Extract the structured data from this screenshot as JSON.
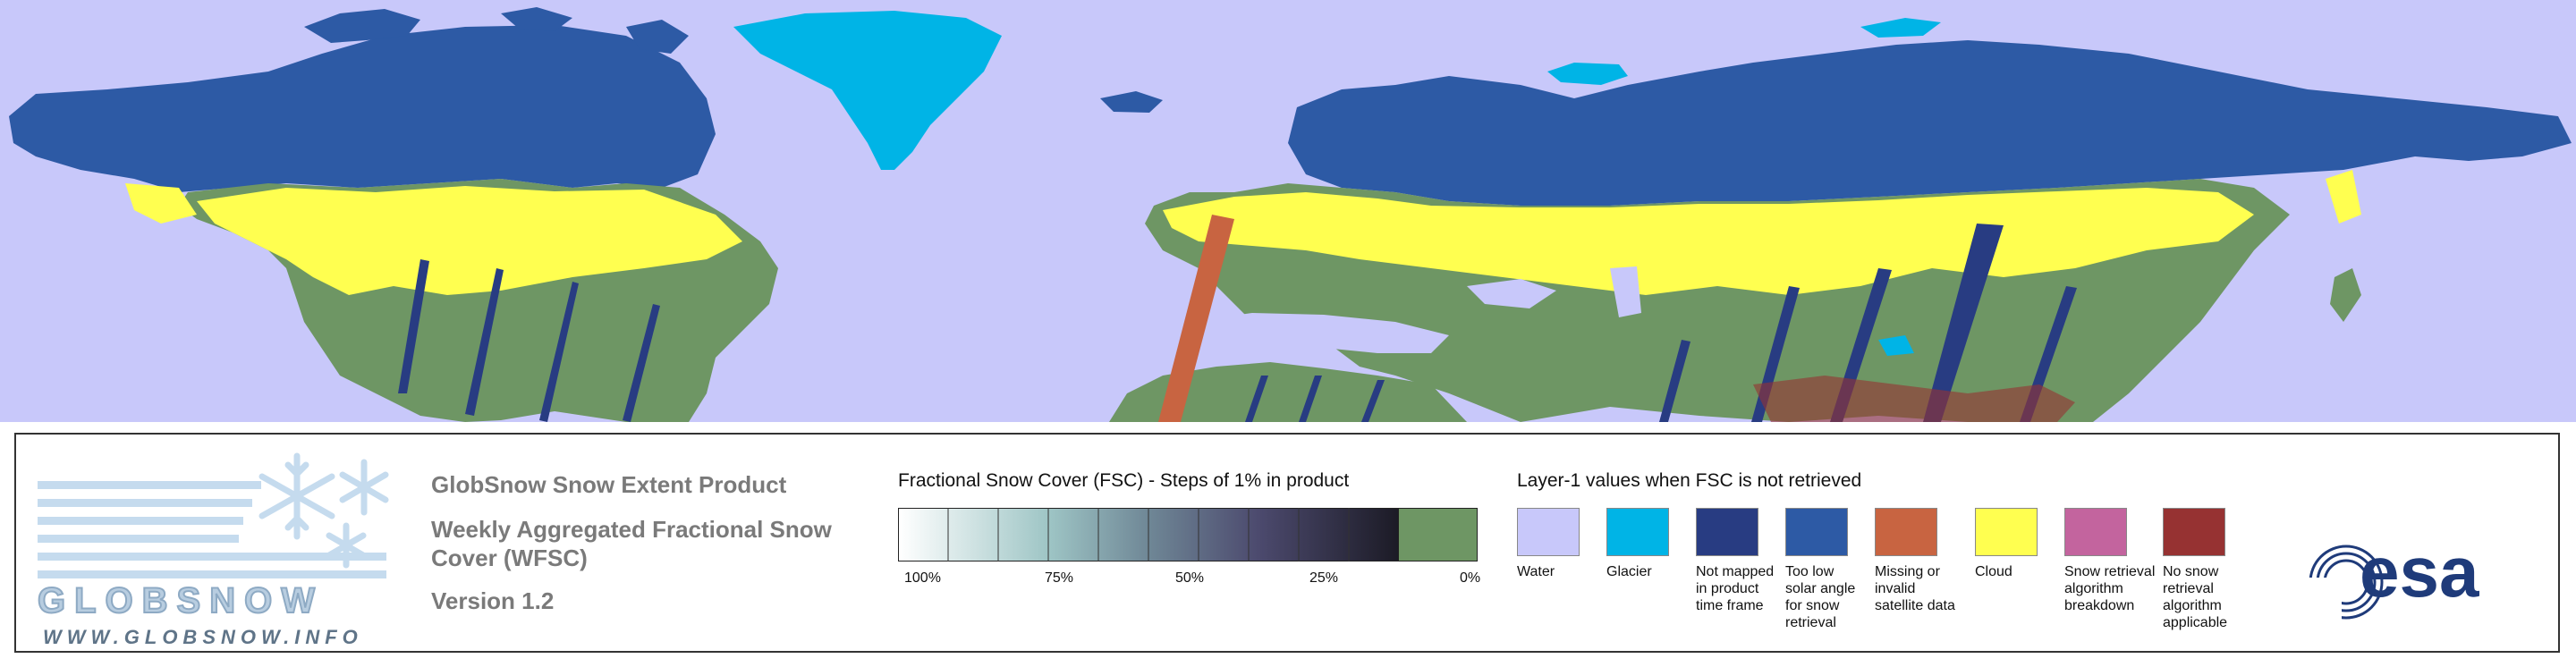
{
  "map": {
    "colors": {
      "water": "#c8c8fa",
      "glacier": "#00b4e6",
      "not_mapped": "#283c82",
      "low_sun": "#2d5aa5",
      "missing": "#c86441",
      "cloud": "#ffff50",
      "snow_free": "#6e9664",
      "algorithm_breakdown": "#c3649e",
      "not_applicable": "#963232"
    }
  },
  "logo": {
    "word": "GLOBSNOW",
    "url": "WWW.GLOBSNOW.INFO"
  },
  "product": {
    "title": "GlobSnow Snow Extent Product",
    "subtitle_line1": "Weekly Aggregated Fractional Snow",
    "subtitle_line2": "Cover (WFSC)",
    "version": "Version 1.2"
  },
  "fsc_scale": {
    "title": "Fractional Snow Cover (FSC) - Steps of 1% in product",
    "ticks": [
      "100%",
      "75%",
      "50%",
      "25%",
      "0%"
    ]
  },
  "layer1": {
    "title": "Layer-1 values when FSC is not retrieved",
    "items": [
      {
        "label": "Water",
        "color": "#c8c8fa"
      },
      {
        "label": "Glacier",
        "color": "#00b4e6"
      },
      {
        "label": "Not mapped in product time frame",
        "color": "#283c82"
      },
      {
        "label": "Too low solar angle for snow retrieval",
        "color": "#2d5aa5"
      },
      {
        "label": "Missing or invalid satellite data",
        "color": "#c86441"
      },
      {
        "label": "Cloud",
        "color": "#ffff50"
      },
      {
        "label": "Snow retrieval algorithm breakdown",
        "color": "#c3649e"
      },
      {
        "label": "No snow retrieval algorithm applicable",
        "color": "#963232"
      }
    ]
  },
  "esa": {
    "wordmark": "esa"
  }
}
